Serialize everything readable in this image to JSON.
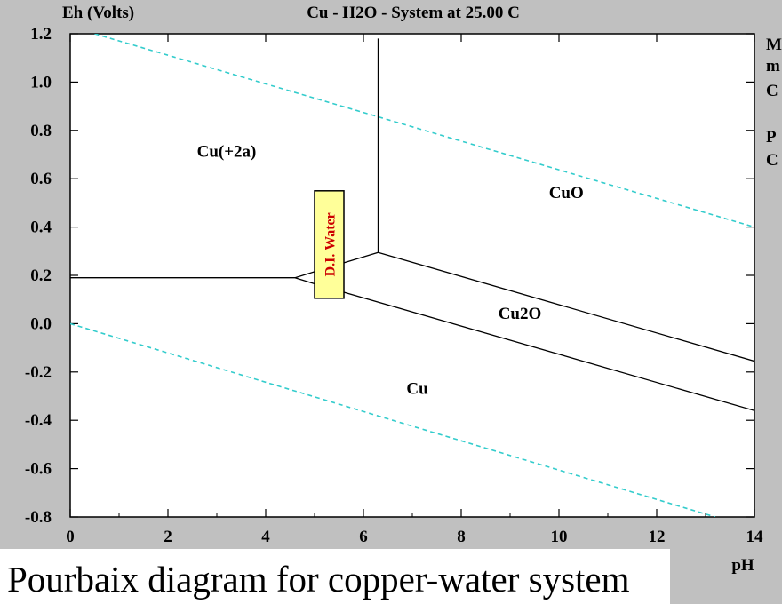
{
  "caption": "Pourbaix diagram for copper-water system",
  "side_panel": {
    "lines": [
      "M",
      "m",
      "C",
      "P",
      "C"
    ]
  },
  "colors": {
    "background": "#c0c0c0",
    "plot_area": "#ffffff",
    "boundary_line": "#000000",
    "water_stability_line": "#33cccc",
    "annotation_box": "#ffff99",
    "annotation_text": "#cc0000"
  },
  "chart_data": {
    "type": "line",
    "title": "Cu - H2O - System at 25.00 C",
    "ylabel": "Eh (Volts)",
    "xlabel": "pH",
    "xlim": [
      0,
      14
    ],
    "ylim": [
      -0.8,
      1.2
    ],
    "x_ticks": [
      0,
      2,
      4,
      6,
      8,
      10,
      12,
      14
    ],
    "y_ticks": [
      1.2,
      1.0,
      0.8,
      0.6,
      0.4,
      0.2,
      0.0,
      -0.2,
      -0.4,
      -0.6,
      -0.8
    ],
    "x_tick_labels": [
      "0",
      "2",
      "4",
      "6",
      "8",
      "10",
      "12",
      "14"
    ],
    "y_tick_labels": [
      "1.2",
      "1.0",
      "0.8",
      "0.6",
      "0.4",
      "0.2",
      "0.0",
      "-0.2",
      "-0.4",
      "-0.6",
      "-0.8"
    ],
    "grid": false,
    "series": [
      {
        "style": "water",
        "points": [
          [
            0.5,
            1.2
          ],
          [
            14,
            0.4
          ]
        ]
      },
      {
        "style": "water",
        "points": [
          [
            0,
            0.0
          ],
          [
            13.2,
            -0.8
          ]
        ]
      },
      {
        "style": "boundary",
        "points": [
          [
            0,
            0.19
          ],
          [
            4.6,
            0.19
          ],
          [
            5.0,
            0.215
          ],
          [
            6.3,
            0.295
          ]
        ]
      },
      {
        "style": "boundary",
        "points": [
          [
            6.3,
            0.295
          ],
          [
            6.3,
            1.18
          ]
        ]
      },
      {
        "style": "boundary",
        "points": [
          [
            6.3,
            0.295
          ],
          [
            14,
            -0.155
          ]
        ]
      },
      {
        "style": "boundary",
        "points": [
          [
            4.6,
            0.19
          ],
          [
            5.0,
            0.165
          ],
          [
            14,
            -0.36
          ]
        ]
      }
    ],
    "region_labels": [
      {
        "text": "Cu(+2a)",
        "x": 3.2,
        "y": 0.69
      },
      {
        "text": "CuO",
        "x": 10.15,
        "y": 0.52
      },
      {
        "text": "Cu2O",
        "x": 9.2,
        "y": 0.02
      },
      {
        "text": "Cu",
        "x": 7.1,
        "y": -0.29
      }
    ],
    "annotations": [
      {
        "text": "D.I. Water",
        "x_range": [
          5.0,
          5.6
        ],
        "y_range": [
          0.105,
          0.55
        ]
      }
    ]
  }
}
